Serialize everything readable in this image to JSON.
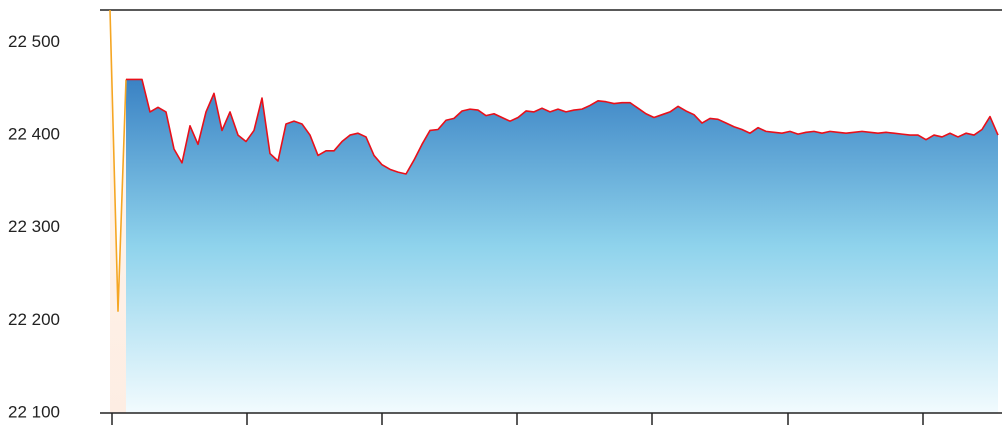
{
  "chart_data": {
    "type": "line",
    "xlim": [
      0,
      111
    ],
    "ylim": [
      22100,
      22535
    ],
    "yticks": [
      {
        "value": 22100,
        "label": "22 100"
      },
      {
        "value": 22200,
        "label": "22 200"
      },
      {
        "value": 22300,
        "label": "22 300"
      },
      {
        "value": 22400,
        "label": "22 400"
      },
      {
        "value": 22500,
        "label": "22 500"
      }
    ],
    "series": [
      {
        "color": "#f5a623",
        "values": [
          22535,
          22210,
          22460,
          null,
          null,
          null,
          null,
          null,
          null,
          null,
          null,
          null,
          null,
          null,
          null,
          null,
          null,
          null,
          null,
          null,
          null,
          null,
          null,
          null,
          null,
          null,
          null,
          null,
          null,
          null,
          null,
          null,
          null,
          null,
          null,
          null,
          null,
          null,
          null,
          null,
          null,
          null,
          null,
          null,
          null,
          null,
          null,
          null,
          null,
          null,
          null,
          null,
          null,
          null,
          null,
          null,
          null,
          null,
          null,
          null,
          null,
          null,
          null,
          null,
          null,
          null,
          null,
          null,
          null,
          null,
          null,
          null,
          null,
          null,
          null,
          null,
          null,
          null,
          null,
          null,
          null,
          null,
          null,
          null,
          null,
          null,
          null,
          null,
          null,
          null,
          null,
          null,
          null,
          null,
          null,
          null,
          null,
          null,
          null,
          null,
          null,
          null,
          null,
          null,
          null,
          null,
          null,
          null,
          null,
          null,
          null,
          null
        ]
      },
      {
        "color": "#e8101a",
        "values": [
          null,
          null,
          22460,
          22460,
          22460,
          22425,
          22430,
          22425,
          22385,
          22370,
          22410,
          22390,
          22425,
          22445,
          22405,
          22425,
          22400,
          22393,
          22405,
          22440,
          22380,
          22372,
          22412,
          22415,
          22412,
          22400,
          22378,
          22383,
          22383,
          22393,
          22400,
          22402,
          22398,
          22378,
          22368,
          22363,
          22360,
          22358,
          22373,
          22390,
          22405,
          22406,
          22416,
          22418,
          22426,
          22428,
          22427,
          22421,
          22423,
          22419,
          22415,
          22419,
          22426,
          22425,
          22429,
          22425,
          22428,
          22425,
          22427,
          22428,
          22432,
          22437,
          22436,
          22434,
          22435,
          22435,
          22429,
          22423,
          22419,
          22422,
          22425,
          22431,
          22426,
          22422,
          22413,
          22418,
          22417,
          22413,
          22409,
          22406,
          22402,
          22408,
          22404,
          22403,
          22402,
          22404,
          22401,
          22403,
          22404,
          22402,
          22404,
          22403,
          22402,
          22403,
          22404,
          22403,
          22402,
          22403,
          22402,
          22401,
          22400,
          22400,
          22395,
          22400,
          22398,
          22402,
          22398,
          22402,
          22400,
          22406,
          22420,
          22400
        ]
      }
    ]
  }
}
